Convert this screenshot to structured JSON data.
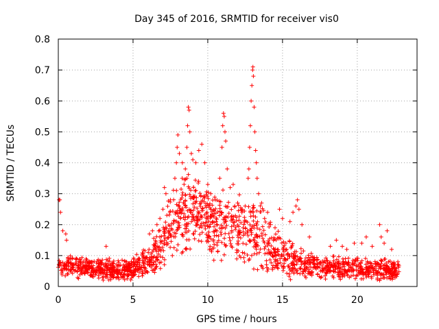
{
  "chart_data": {
    "type": "scatter",
    "title": "Day 345 of 2016, SRMTID for receiver vis0",
    "xlabel": "GPS time / hours",
    "ylabel": "SRMTID / TECUs",
    "xlim": [
      0,
      24
    ],
    "ylim": [
      0,
      0.8
    ],
    "xticks": [
      0,
      5,
      10,
      15,
      20
    ],
    "yticks": [
      0,
      0.1,
      0.2,
      0.3,
      0.4,
      0.5,
      0.6,
      0.7,
      0.8
    ],
    "xtick_labels": [
      "0",
      "5",
      "10",
      "15",
      "20"
    ],
    "ytick_labels": [
      "0",
      "0.1",
      "0.2",
      "0.3",
      "0.4",
      "0.5",
      "0.6",
      "0.7",
      "0.8"
    ],
    "grid": true,
    "marker": "+",
    "color": "#ff0000",
    "x_range_of_data": [
      0,
      22.8
    ],
    "envelope": [
      {
        "x": 0.0,
        "base": 0.06,
        "spread": 0.04
      },
      {
        "x": 0.5,
        "base": 0.07,
        "spread": 0.04
      },
      {
        "x": 2.0,
        "base": 0.06,
        "spread": 0.04
      },
      {
        "x": 3.0,
        "base": 0.055,
        "spread": 0.04
      },
      {
        "x": 4.0,
        "base": 0.05,
        "spread": 0.04
      },
      {
        "x": 5.0,
        "base": 0.06,
        "spread": 0.04
      },
      {
        "x": 6.0,
        "base": 0.08,
        "spread": 0.05
      },
      {
        "x": 7.0,
        "base": 0.12,
        "spread": 0.09
      },
      {
        "x": 7.5,
        "base": 0.2,
        "spread": 0.12
      },
      {
        "x": 8.5,
        "base": 0.24,
        "spread": 0.14
      },
      {
        "x": 9.5,
        "base": 0.24,
        "spread": 0.13
      },
      {
        "x": 10.5,
        "base": 0.2,
        "spread": 0.12
      },
      {
        "x": 11.5,
        "base": 0.19,
        "spread": 0.12
      },
      {
        "x": 12.5,
        "base": 0.18,
        "spread": 0.12
      },
      {
        "x": 13.5,
        "base": 0.17,
        "spread": 0.12
      },
      {
        "x": 14.5,
        "base": 0.11,
        "spread": 0.08
      },
      {
        "x": 15.5,
        "base": 0.09,
        "spread": 0.07
      },
      {
        "x": 16.5,
        "base": 0.07,
        "spread": 0.05
      },
      {
        "x": 18.0,
        "base": 0.06,
        "spread": 0.04
      },
      {
        "x": 20.0,
        "base": 0.06,
        "spread": 0.04
      },
      {
        "x": 22.0,
        "base": 0.055,
        "spread": 0.04
      },
      {
        "x": 22.8,
        "base": 0.05,
        "spread": 0.035
      }
    ],
    "points": [
      [
        0.05,
        0.28
      ],
      [
        0.1,
        0.28
      ],
      [
        0.15,
        0.24
      ],
      [
        0.3,
        0.18
      ],
      [
        0.5,
        0.17
      ],
      [
        0.55,
        0.15
      ],
      [
        3.2,
        0.13
      ],
      [
        6.1,
        0.17
      ],
      [
        6.3,
        0.18
      ],
      [
        6.6,
        0.2
      ],
      [
        6.8,
        0.22
      ],
      [
        7.0,
        0.25
      ],
      [
        7.1,
        0.32
      ],
      [
        7.2,
        0.3
      ],
      [
        7.5,
        0.28
      ],
      [
        7.8,
        0.35
      ],
      [
        7.9,
        0.4
      ],
      [
        7.95,
        0.45
      ],
      [
        8.0,
        0.49
      ],
      [
        8.1,
        0.43
      ],
      [
        8.3,
        0.4
      ],
      [
        8.5,
        0.38
      ],
      [
        8.6,
        0.45
      ],
      [
        8.65,
        0.52
      ],
      [
        8.7,
        0.58
      ],
      [
        8.75,
        0.57
      ],
      [
        8.8,
        0.5
      ],
      [
        8.9,
        0.43
      ],
      [
        9.0,
        0.41
      ],
      [
        9.2,
        0.4
      ],
      [
        9.4,
        0.44
      ],
      [
        9.6,
        0.46
      ],
      [
        9.8,
        0.4
      ],
      [
        10.0,
        0.33
      ],
      [
        10.2,
        0.3
      ],
      [
        10.5,
        0.28
      ],
      [
        10.8,
        0.35
      ],
      [
        10.95,
        0.45
      ],
      [
        11.0,
        0.52
      ],
      [
        11.05,
        0.56
      ],
      [
        11.1,
        0.55
      ],
      [
        11.15,
        0.5
      ],
      [
        11.2,
        0.47
      ],
      [
        11.3,
        0.38
      ],
      [
        11.5,
        0.32
      ],
      [
        11.7,
        0.33
      ],
      [
        11.8,
        0.26
      ],
      [
        12.0,
        0.27
      ],
      [
        12.3,
        0.25
      ],
      [
        12.5,
        0.26
      ],
      [
        12.7,
        0.35
      ],
      [
        12.75,
        0.38
      ],
      [
        12.8,
        0.45
      ],
      [
        12.85,
        0.52
      ],
      [
        12.9,
        0.6
      ],
      [
        12.95,
        0.65
      ],
      [
        13.0,
        0.7
      ],
      [
        13.02,
        0.71
      ],
      [
        13.05,
        0.68
      ],
      [
        13.1,
        0.58
      ],
      [
        13.15,
        0.5
      ],
      [
        13.2,
        0.44
      ],
      [
        13.25,
        0.4
      ],
      [
        13.3,
        0.35
      ],
      [
        13.4,
        0.3
      ],
      [
        13.6,
        0.27
      ],
      [
        13.8,
        0.22
      ],
      [
        14.0,
        0.24
      ],
      [
        14.2,
        0.2
      ],
      [
        14.5,
        0.19
      ],
      [
        14.8,
        0.25
      ],
      [
        15.0,
        0.22
      ],
      [
        15.5,
        0.21
      ],
      [
        15.7,
        0.24
      ],
      [
        15.9,
        0.26
      ],
      [
        16.0,
        0.28
      ],
      [
        16.1,
        0.25
      ],
      [
        16.3,
        0.2
      ],
      [
        16.8,
        0.16
      ],
      [
        18.2,
        0.13
      ],
      [
        18.6,
        0.15
      ],
      [
        19.0,
        0.13
      ],
      [
        19.3,
        0.12
      ],
      [
        19.8,
        0.14
      ],
      [
        20.3,
        0.14
      ],
      [
        20.6,
        0.16
      ],
      [
        21.0,
        0.13
      ],
      [
        21.5,
        0.2
      ],
      [
        21.6,
        0.16
      ],
      [
        21.8,
        0.14
      ],
      [
        22.0,
        0.18
      ],
      [
        22.3,
        0.12
      ],
      [
        22.7,
        0.07
      ]
    ]
  }
}
